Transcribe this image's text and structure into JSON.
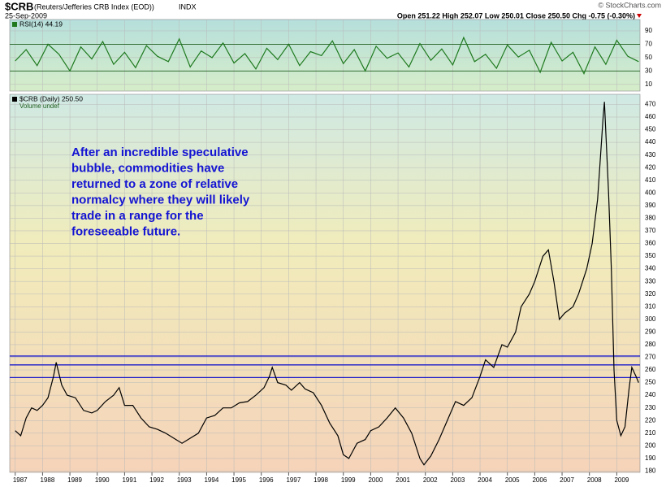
{
  "header": {
    "symbol": "$CRB",
    "name": "(Reuters/Jefferies CRB Index (EOD))",
    "exchange": "INDX",
    "date": "25-Sep-2009",
    "quote": "Open 251.22 High 252.07 Low 250.01 Close 250.50 Chg -0.75 (-0.30%)",
    "source": "© StockCharts.com"
  },
  "chart_data": [
    {
      "type": "line",
      "legend": "RSI(14) 44.19",
      "x": [
        1987.0,
        1987.4,
        1987.8,
        1988.2,
        1988.6,
        1989.0,
        1989.4,
        1989.8,
        1990.2,
        1990.6,
        1991.0,
        1991.4,
        1991.8,
        1992.2,
        1992.6,
        1993.0,
        1993.4,
        1993.8,
        1994.2,
        1994.6,
        1995.0,
        1995.4,
        1995.8,
        1996.2,
        1996.6,
        1997.0,
        1997.4,
        1997.8,
        1998.2,
        1998.6,
        1999.0,
        1999.4,
        1999.8,
        2000.2,
        2000.6,
        2001.0,
        2001.4,
        2001.8,
        2002.2,
        2002.6,
        2003.0,
        2003.4,
        2003.8,
        2004.2,
        2004.6,
        2005.0,
        2005.4,
        2005.8,
        2006.2,
        2006.6,
        2007.0,
        2007.4,
        2007.8,
        2008.2,
        2008.6,
        2009.0,
        2009.4,
        2009.8
      ],
      "series": [
        {
          "name": "RSI(14)",
          "color": "#1f7a1f",
          "values": [
            45,
            62,
            38,
            70,
            55,
            30,
            66,
            48,
            74,
            40,
            58,
            35,
            68,
            52,
            44,
            78,
            36,
            60,
            50,
            72,
            42,
            56,
            33,
            64,
            47,
            70,
            38,
            59,
            53,
            75,
            41,
            62,
            30,
            67,
            49,
            57,
            36,
            71,
            46,
            63,
            39,
            80,
            44,
            55,
            34,
            69,
            51,
            61,
            28,
            73,
            45,
            58,
            26,
            66,
            40,
            76,
            52,
            44
          ]
        }
      ],
      "xlim": [
        1986.8,
        2009.85
      ],
      "ylim": [
        0,
        107
      ],
      "yticks": [
        10,
        30,
        50,
        70,
        90
      ],
      "hlines": [
        30,
        70
      ],
      "hline_color": "#1f5f1f",
      "grid": true
    },
    {
      "type": "line",
      "legend": "$CRB (Daily) 250.50",
      "legend2": "Volume undef",
      "annotation": [
        "After an incredible speculative",
        "bubble, commodities have",
        "returned to a zone of relative",
        "normalcy where they will likely",
        "trade in a range for the",
        "foreseeable future."
      ],
      "x": [
        1987.0,
        1987.2,
        1987.4,
        1987.6,
        1987.8,
        1988.0,
        1988.2,
        1988.4,
        1988.5,
        1988.7,
        1988.9,
        1989.2,
        1989.5,
        1989.8,
        1990.0,
        1990.3,
        1990.6,
        1990.8,
        1991.0,
        1991.3,
        1991.6,
        1991.9,
        1992.2,
        1992.5,
        1992.8,
        1993.1,
        1993.4,
        1993.7,
        1994.0,
        1994.3,
        1994.6,
        1994.9,
        1995.2,
        1995.5,
        1995.8,
        1996.1,
        1996.3,
        1996.4,
        1996.6,
        1996.9,
        1997.1,
        1997.4,
        1997.6,
        1997.9,
        1998.2,
        1998.5,
        1998.8,
        1999.0,
        1999.2,
        1999.5,
        1999.8,
        2000.0,
        2000.3,
        2000.6,
        2000.9,
        2001.2,
        2001.5,
        2001.8,
        2001.95,
        2002.2,
        2002.5,
        2002.8,
        2003.1,
        2003.4,
        2003.7,
        2004.0,
        2004.2,
        2004.5,
        2004.8,
        2005.0,
        2005.3,
        2005.5,
        2005.8,
        2006.0,
        2006.3,
        2006.5,
        2006.7,
        2006.9,
        2007.1,
        2007.4,
        2007.6,
        2007.9,
        2008.1,
        2008.3,
        2008.5,
        2008.55,
        2008.7,
        2008.8,
        2008.9,
        2009.0,
        2009.15,
        2009.3,
        2009.45,
        2009.55,
        2009.7,
        2009.8
      ],
      "series": [
        {
          "name": "$CRB",
          "color": "#000000",
          "values": [
            212,
            208,
            222,
            230,
            228,
            232,
            238,
            255,
            266,
            248,
            240,
            238,
            228,
            226,
            228,
            235,
            240,
            246,
            232,
            232,
            222,
            215,
            213,
            210,
            206,
            202,
            206,
            210,
            222,
            224,
            230,
            230,
            234,
            235,
            240,
            246,
            255,
            262,
            250,
            248,
            244,
            250,
            245,
            242,
            232,
            218,
            208,
            193,
            190,
            202,
            205,
            212,
            215,
            222,
            230,
            222,
            210,
            190,
            185,
            192,
            205,
            220,
            235,
            232,
            238,
            255,
            268,
            262,
            280,
            278,
            290,
            310,
            320,
            330,
            350,
            355,
            330,
            300,
            305,
            310,
            320,
            340,
            360,
            395,
            460,
            472,
            400,
            340,
            260,
            220,
            208,
            215,
            245,
            262,
            255,
            250
          ]
        }
      ],
      "xlim": [
        1986.8,
        2009.85
      ],
      "ylim": [
        179,
        478
      ],
      "yticks": [
        180,
        190,
        200,
        210,
        220,
        230,
        240,
        250,
        260,
        270,
        280,
        290,
        300,
        310,
        320,
        330,
        340,
        350,
        360,
        370,
        380,
        390,
        400,
        410,
        420,
        430,
        440,
        450,
        460,
        470
      ],
      "xticks": [
        1987,
        1988,
        1989,
        1990,
        1991,
        1992,
        1993,
        1994,
        1995,
        1996,
        1997,
        1998,
        1999,
        2000,
        2001,
        2002,
        2003,
        2004,
        2005,
        2006,
        2007,
        2008,
        2009
      ],
      "hlines": [
        254,
        264,
        271
      ],
      "hline_color": "#1a1acc",
      "annotation_color": "#1414d2",
      "grid": true
    }
  ]
}
